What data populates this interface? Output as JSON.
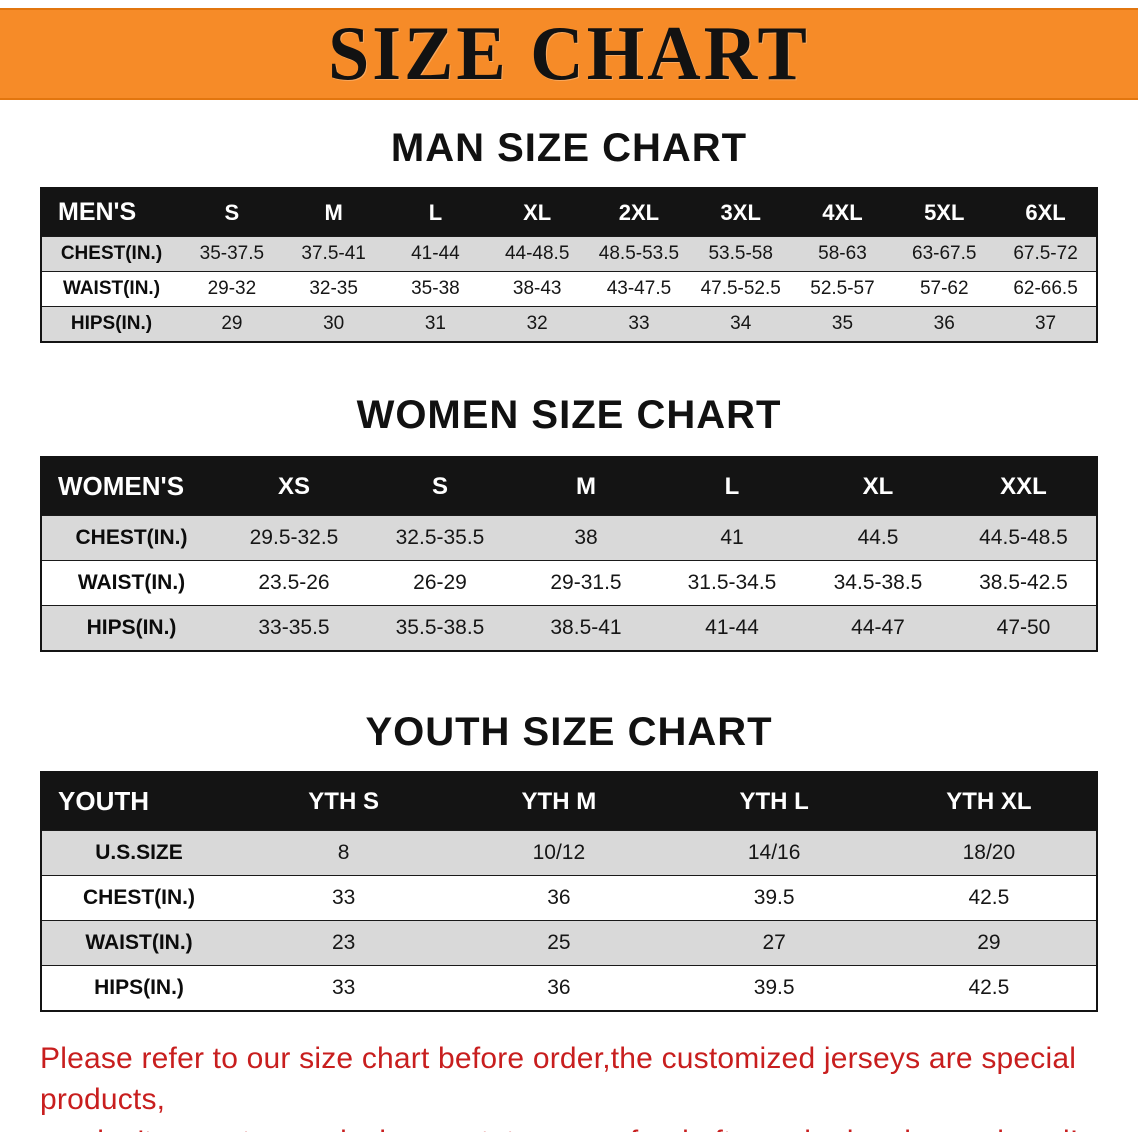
{
  "banner": {
    "title": "SIZE CHART"
  },
  "colors": {
    "banner_bg": "#f68b28",
    "header_bg": "#141414",
    "stripe": "#d9d9d9",
    "footer_text": "#c81e1e"
  },
  "sections": [
    {
      "heading": "MAN SIZE CHART",
      "table": {
        "header": [
          "MEN'S",
          "S",
          "M",
          "L",
          "XL",
          "2XL",
          "3XL",
          "4XL",
          "5XL",
          "6XL"
        ],
        "rows": [
          [
            "CHEST(IN.)",
            "35-37.5",
            "37.5-41",
            "41-44",
            "44-48.5",
            "48.5-53.5",
            "53.5-58",
            "58-63",
            "63-67.5",
            "67.5-72"
          ],
          [
            "WAIST(IN.)",
            "29-32",
            "32-35",
            "35-38",
            "38-43",
            "43-47.5",
            "47.5-52.5",
            "52.5-57",
            "57-62",
            "62-66.5"
          ],
          [
            "HIPS(IN.)",
            "29",
            "30",
            "31",
            "32",
            "33",
            "34",
            "35",
            "36",
            "37"
          ]
        ]
      }
    },
    {
      "heading": "WOMEN SIZE CHART",
      "table": {
        "header": [
          "WOMEN'S",
          "XS",
          "S",
          "M",
          "L",
          "XL",
          "XXL"
        ],
        "rows": [
          [
            "CHEST(IN.)",
            "29.5-32.5",
            "32.5-35.5",
            "38",
            "41",
            "44.5",
            "44.5-48.5"
          ],
          [
            "WAIST(IN.)",
            "23.5-26",
            "26-29",
            "29-31.5",
            "31.5-34.5",
            "34.5-38.5",
            "38.5-42.5"
          ],
          [
            "HIPS(IN.)",
            "33-35.5",
            "35.5-38.5",
            "38.5-41",
            "41-44",
            "44-47",
            "47-50"
          ]
        ]
      }
    },
    {
      "heading": "YOUTH SIZE CHART",
      "table": {
        "header": [
          "YOUTH",
          "YTH S",
          "YTH M",
          "YTH L",
          "YTH XL"
        ],
        "rows": [
          [
            "U.S.SIZE",
            "8",
            "10/12",
            "14/16",
            "18/20"
          ],
          [
            "CHEST(IN.)",
            "33",
            "36",
            "39.5",
            "42.5"
          ],
          [
            "WAIST(IN.)",
            "23",
            "25",
            "27",
            "29"
          ],
          [
            "HIPS(IN.)",
            "33",
            "36",
            "39.5",
            "42.5"
          ]
        ]
      }
    }
  ],
  "footer": {
    "line1": "Please refer to our size chart before order,the customized jerseys are special products,",
    "line2": "we don't accept cancel, change, teturn or refund after order has been placed!"
  }
}
